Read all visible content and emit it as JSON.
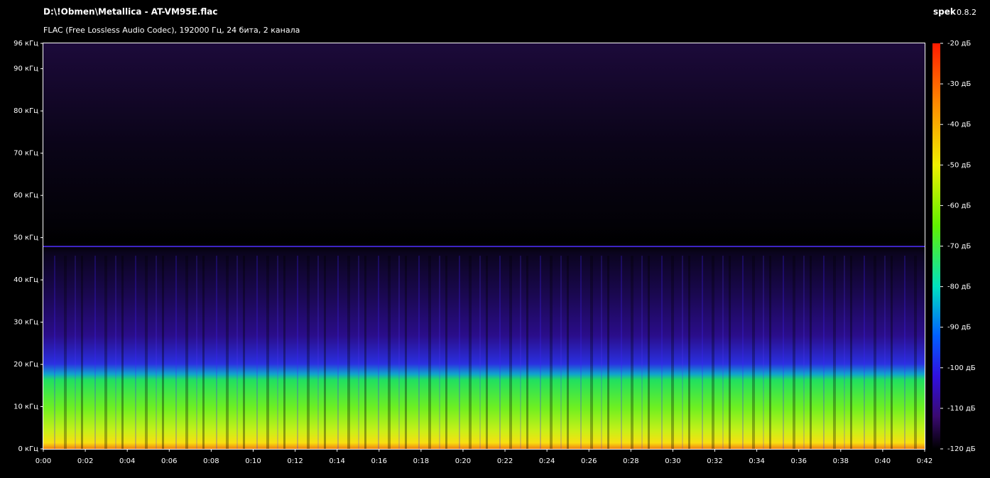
{
  "chart_data": {
    "type": "spectrogram",
    "title": "D:\\!Obmen\\Metallica - AT-VM95E.flac",
    "subtitle": "FLAC (Free Lossless Audio Codec), 192000 Гц, 24 бита, 2 канала",
    "app_name": "spek",
    "app_version": "0.8.2",
    "xlim": [
      0,
      42
    ],
    "xticks": [
      {
        "value": 0,
        "label": "0:00"
      },
      {
        "value": 2,
        "label": "0:02"
      },
      {
        "value": 4,
        "label": "0:04"
      },
      {
        "value": 6,
        "label": "0:06"
      },
      {
        "value": 8,
        "label": "0:08"
      },
      {
        "value": 10,
        "label": "0:10"
      },
      {
        "value": 12,
        "label": "0:12"
      },
      {
        "value": 14,
        "label": "0:14"
      },
      {
        "value": 16,
        "label": "0:16"
      },
      {
        "value": 18,
        "label": "0:18"
      },
      {
        "value": 20,
        "label": "0:20"
      },
      {
        "value": 22,
        "label": "0:22"
      },
      {
        "value": 24,
        "label": "0:24"
      },
      {
        "value": 26,
        "label": "0:26"
      },
      {
        "value": 28,
        "label": "0:28"
      },
      {
        "value": 30,
        "label": "0:30"
      },
      {
        "value": 32,
        "label": "0:32"
      },
      {
        "value": 34,
        "label": "0:34"
      },
      {
        "value": 36,
        "label": "0:36"
      },
      {
        "value": 38,
        "label": "0:38"
      },
      {
        "value": 40,
        "label": "0:40"
      },
      {
        "value": 42,
        "label": "0:42"
      }
    ],
    "ylim": [
      0,
      96
    ],
    "yticks": [
      {
        "value": 0,
        "label": "0 кГц"
      },
      {
        "value": 10,
        "label": "10 кГц"
      },
      {
        "value": 20,
        "label": "20 кГц"
      },
      {
        "value": 30,
        "label": "30 кГц"
      },
      {
        "value": 40,
        "label": "40 кГц"
      },
      {
        "value": 50,
        "label": "50 кГц"
      },
      {
        "value": 60,
        "label": "60 кГц"
      },
      {
        "value": 70,
        "label": "70 кГц"
      },
      {
        "value": 80,
        "label": "80 кГц"
      },
      {
        "value": 90,
        "label": "90 кГц"
      },
      {
        "value": 96,
        "label": "96 кГц"
      }
    ],
    "zlim": [
      -120,
      -20
    ],
    "zticks": [
      {
        "value": -20,
        "label": "-20 дБ"
      },
      {
        "value": -30,
        "label": "-30 дБ"
      },
      {
        "value": -40,
        "label": "-40 дБ"
      },
      {
        "value": -50,
        "label": "-50 дБ"
      },
      {
        "value": -60,
        "label": "-60 дБ"
      },
      {
        "value": -70,
        "label": "-70 дБ"
      },
      {
        "value": -80,
        "label": "-80 дБ"
      },
      {
        "value": -90,
        "label": "-90 дБ"
      },
      {
        "value": -100,
        "label": "-100 дБ"
      },
      {
        "value": -110,
        "label": "-110 дБ"
      },
      {
        "value": -120,
        "label": "-120 дБ"
      }
    ]
  }
}
